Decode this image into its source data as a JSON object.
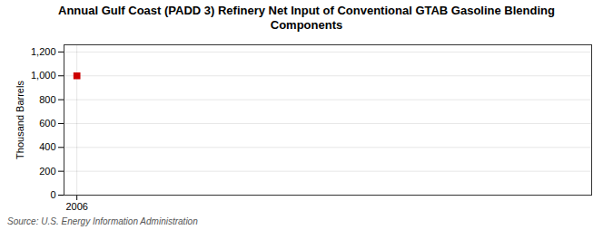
{
  "chart_data": {
    "type": "scatter",
    "title": "Annual Gulf Coast (PADD 3) Refinery Net Input of Conventional GTAB Gasoline Blending\nComponents",
    "source": "Source: U.S. Energy Information Administration",
    "ylabel": "Thousand Barrels",
    "x": [
      2006
    ],
    "values": [
      1000
    ],
    "color": "#cc0000",
    "marker": "square",
    "xlim": [
      2005.4,
      2030
    ],
    "xticks": [
      2006
    ],
    "ylim": [
      0,
      1260
    ],
    "yticks": [
      0,
      200,
      400,
      600,
      800,
      {
        "value": 1000,
        "label": "1,000"
      },
      {
        "value": 1200,
        "label": "1,200"
      }
    ],
    "grid": true
  }
}
